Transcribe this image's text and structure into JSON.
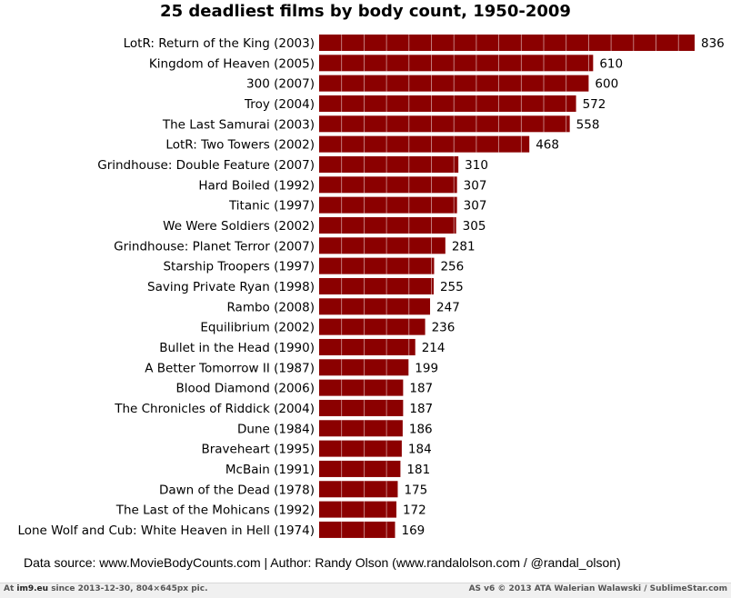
{
  "chart_data": {
    "type": "bar",
    "orientation": "horizontal",
    "title": "25 deadliest films by body count, 1950-2009",
    "categories": [
      "LotR: Return of the King (2003)",
      "Kingdom of Heaven (2005)",
      "300 (2007)",
      "Troy (2004)",
      "The Last Samurai (2003)",
      "LotR: Two Towers (2002)",
      "Grindhouse: Double Feature (2007)",
      "Hard Boiled (1992)",
      "Titanic (1997)",
      "We Were Soldiers (2002)",
      "Grindhouse: Planet Terror (2007)",
      "Starship Troopers (1997)",
      "Saving Private Ryan (1998)",
      "Rambo (2008)",
      "Equilibrium (2002)",
      "Bullet in the Head (1990)",
      "A Better Tomorrow II (1987)",
      "Blood Diamond (2006)",
      "The Chronicles of Riddick (2004)",
      "Dune (1984)",
      "Braveheart (1995)",
      "McBain (1991)",
      "Dawn of the Dead (1978)",
      "The Last of the Mohicans (1992)",
      "Lone Wolf and Cub: White Heaven in Hell (1974)"
    ],
    "values": [
      836,
      610,
      600,
      572,
      558,
      468,
      310,
      307,
      307,
      305,
      281,
      256,
      255,
      247,
      236,
      214,
      199,
      187,
      187,
      186,
      184,
      181,
      175,
      172,
      169
    ],
    "xlim": [
      0,
      836
    ],
    "grid": "vertical white lines over bars",
    "bar_color": "#8b0000",
    "data_labels": true
  },
  "source_text": "Data source: www.MovieBodyCounts.com | Author: Randy Olson (www.randalolson.com / @randal_olson)",
  "footer": {
    "left_prefix": "At ",
    "left_site": "im9.eu",
    "left_rest": "  since 2013-12-30, 804×645px pic.",
    "right": "AS v6 © 2013 ATA Walerian Walawski / SublimeStar.com"
  }
}
